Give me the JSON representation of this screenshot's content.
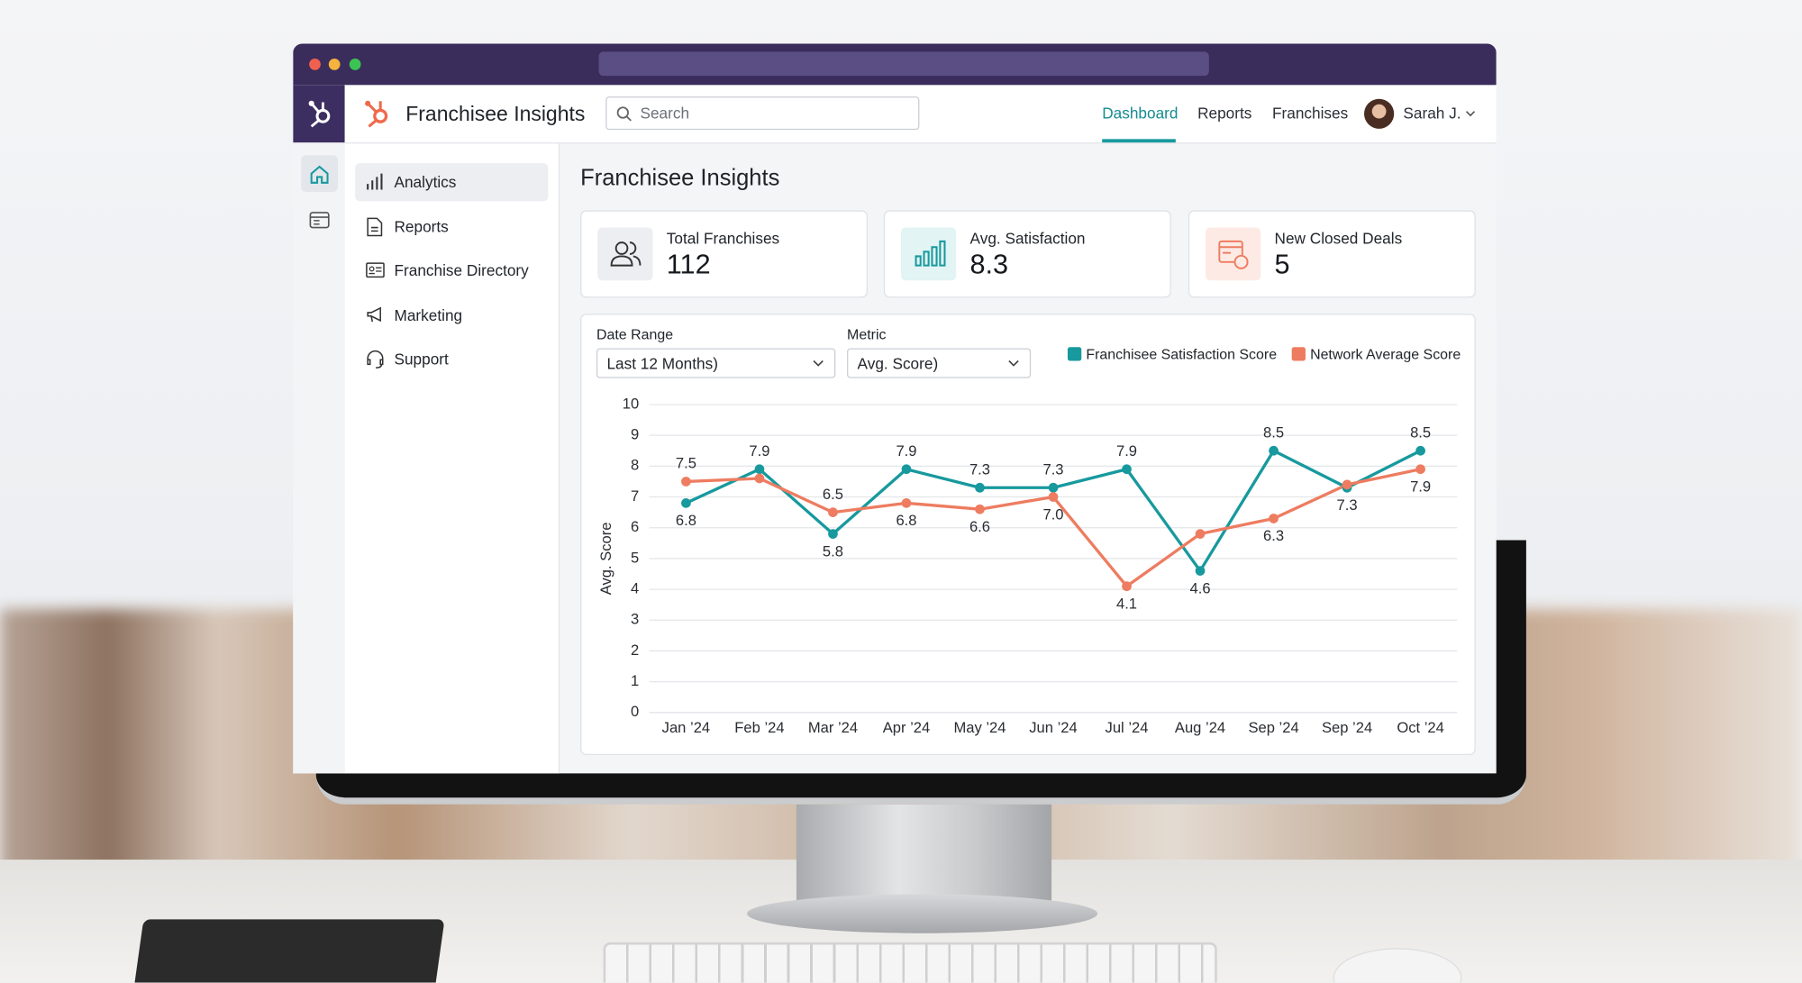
{
  "app": {
    "title": "Franchisee Insights",
    "search_placeholder": "Search",
    "nav": [
      "Dashboard",
      "Reports",
      "Franchises"
    ],
    "user": "Sarah J."
  },
  "sidebar": [
    "Analytics",
    "Reports",
    "Franchise Directory",
    "Marketing",
    "Support"
  ],
  "page_title": "Franchisee Insights",
  "cards": [
    {
      "label": "Total Franchises",
      "value": 112
    },
    {
      "label": "Avg. Satisfaction",
      "value": 8.3
    },
    {
      "label": "New Closed Deals",
      "value": 5
    }
  ],
  "filters": [
    {
      "label": "Date Range",
      "value": "Last 12 Months)"
    },
    {
      "label": "Metric",
      "value": "Avg. Score)"
    }
  ],
  "chart_data": {
    "type": "line",
    "y_label": "Avg. Score",
    "categories": [
      "Jan ’24",
      "Feb ’24",
      "Mar ’24",
      "Apr ’24",
      "May ’24",
      "Jun ’24",
      "Jul ’24",
      "Aug ’24",
      "Sep ’24",
      "Sep ’24",
      "Oct ’24"
    ],
    "series": [
      {
        "name": "Franchisee Satisfaction Score",
        "color": "#17999e",
        "values": [
          6.8,
          7.9,
          5.8,
          7.9,
          7.3,
          7.3,
          7.9,
          4.6,
          8.5,
          7.3,
          8.5
        ],
        "value_labels": [
          "6.8",
          "7.9",
          "5.8",
          "7.9",
          "7.3",
          "7.3",
          "7.9",
          "4.6",
          "8.5",
          "7.3",
          "8.5"
        ]
      },
      {
        "name": "Network Average Score",
        "color": "#ee7c60",
        "values": [
          7.5,
          7.6,
          6.5,
          6.8,
          6.6,
          7.0,
          4.1,
          5.8,
          6.3,
          7.4,
          7.9
        ],
        "value_labels": [
          "7.5",
          null,
          "6.5",
          "6.8",
          "6.6",
          "7.0",
          "4.1",
          null,
          "6.3",
          null,
          "7.9"
        ]
      }
    ],
    "ylim": [
      0,
      10
    ],
    "yticks": [
      0,
      1,
      2,
      3,
      4,
      5,
      6,
      7,
      8,
      9,
      10
    ],
    "grid": true
  }
}
